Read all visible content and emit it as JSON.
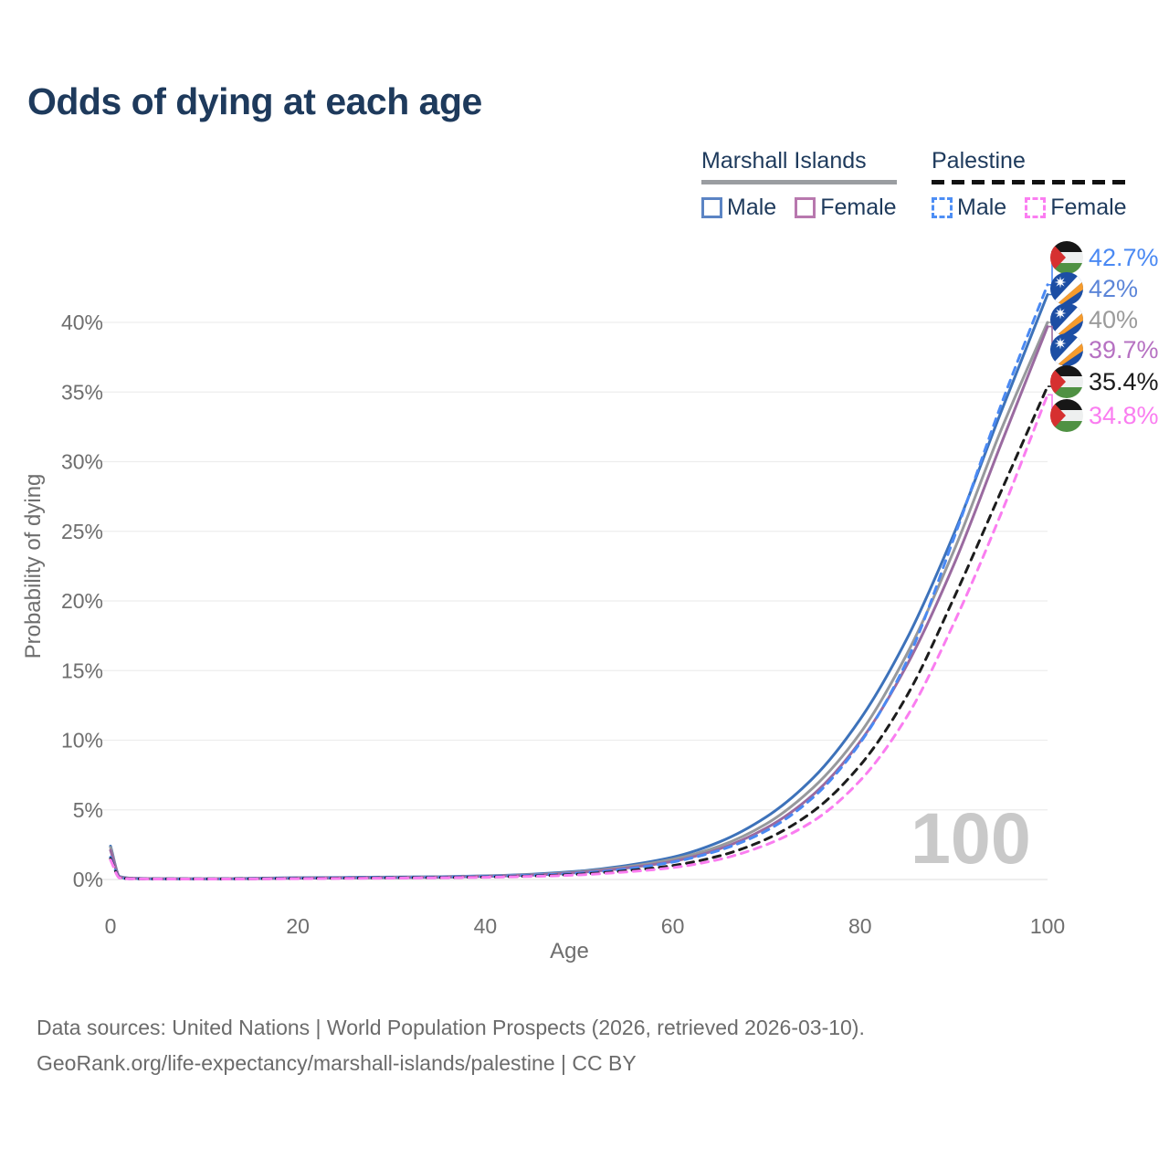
{
  "title": "Odds of dying at each age",
  "legend": {
    "groups": [
      {
        "label": "Marshall Islands",
        "rule_style": "solid",
        "rule_color": "#9a9da1",
        "items": [
          {
            "label": "Male",
            "color": "#5b84c4",
            "dashed": false
          },
          {
            "label": "Female",
            "color": "#b878ae",
            "dashed": false
          }
        ]
      },
      {
        "label": "Palestine",
        "rule_style": "dashed",
        "rule_color": "#111111",
        "items": [
          {
            "label": "Male",
            "color": "#4d8ef5",
            "dashed": true
          },
          {
            "label": "Female",
            "color": "#fb7df1",
            "dashed": true
          }
        ]
      }
    ]
  },
  "chart_data": {
    "type": "line",
    "title": "Odds of dying at each age",
    "xlabel": "Age",
    "ylabel": "Probability of dying",
    "x_ticks": [
      0,
      20,
      40,
      60,
      80,
      100
    ],
    "y_ticks": [
      0,
      5,
      10,
      15,
      20,
      25,
      30,
      35,
      40
    ],
    "y_tick_suffix": "%",
    "xlim": [
      0,
      100
    ],
    "ylim": [
      0,
      44
    ],
    "grid": "horizontal",
    "legend_position": "top-right",
    "watermark": "100",
    "ages": [
      0,
      1,
      2,
      5,
      10,
      15,
      20,
      25,
      30,
      35,
      40,
      45,
      50,
      55,
      60,
      65,
      70,
      75,
      80,
      85,
      90,
      95,
      100
    ],
    "series": [
      {
        "name": "Palestine Male",
        "country": "Palestine",
        "sex": "Male",
        "color": "#4a89f3",
        "label_color": "#4a89f3",
        "dashed": true,
        "flag": "palestine",
        "end_label": "42.7%",
        "end_value": 42.7,
        "values": [
          1.6,
          0.12,
          0.06,
          0.04,
          0.04,
          0.06,
          0.1,
          0.12,
          0.14,
          0.17,
          0.22,
          0.3,
          0.45,
          0.75,
          1.25,
          2.1,
          3.5,
          5.9,
          9.8,
          15.7,
          24.5,
          34.0,
          42.7
        ]
      },
      {
        "name": "Marshall Islands Male",
        "country": "Marshall Islands",
        "sex": "Male",
        "color": "#3d72ba",
        "label_color": "#5c85d8",
        "dashed": false,
        "flag": "marshall",
        "end_label": "42%",
        "end_value": 42.0,
        "values": [
          2.4,
          0.2,
          0.1,
          0.06,
          0.05,
          0.08,
          0.13,
          0.15,
          0.17,
          0.2,
          0.26,
          0.38,
          0.6,
          1.0,
          1.6,
          2.7,
          4.5,
          7.3,
          11.5,
          17.3,
          24.8,
          33.5,
          42.0
        ]
      },
      {
        "name": "Marshall Islands",
        "country": "Marshall Islands",
        "sex": "Both",
        "color": "#97999c",
        "label_color": "#9b9b9b",
        "dashed": false,
        "flag": "marshall",
        "end_label": "40%",
        "end_value": 40.0,
        "values": [
          2.3,
          0.18,
          0.09,
          0.05,
          0.05,
          0.07,
          0.11,
          0.13,
          0.15,
          0.18,
          0.24,
          0.34,
          0.55,
          0.9,
          1.45,
          2.4,
          4.0,
          6.6,
          10.5,
          16.2,
          23.6,
          32.2,
          40.0
        ]
      },
      {
        "name": "Marshall Islands Female",
        "country": "Marshall Islands",
        "sex": "Female",
        "color": "#9a6aa0",
        "label_color": "#b671c2",
        "dashed": false,
        "flag": "marshall",
        "end_label": "39.7%",
        "end_value": 39.7,
        "values": [
          2.1,
          0.16,
          0.08,
          0.05,
          0.04,
          0.06,
          0.09,
          0.11,
          0.13,
          0.16,
          0.22,
          0.31,
          0.5,
          0.82,
          1.3,
          2.2,
          3.7,
          6.1,
          9.9,
          15.4,
          22.6,
          31.2,
          39.7
        ]
      },
      {
        "name": "Palestine",
        "country": "Palestine",
        "sex": "Both",
        "color": "#1c1c1c",
        "label_color": "#1c1c1c",
        "dashed": true,
        "flag": "palestine",
        "end_label": "35.4%",
        "end_value": 35.4,
        "values": [
          1.5,
          0.11,
          0.06,
          0.04,
          0.04,
          0.05,
          0.08,
          0.1,
          0.12,
          0.14,
          0.18,
          0.25,
          0.38,
          0.62,
          1.0,
          1.7,
          2.9,
          4.9,
          8.2,
          13.2,
          20.2,
          27.8,
          35.4
        ]
      },
      {
        "name": "Palestine Female",
        "country": "Palestine",
        "sex": "Female",
        "color": "#fa7df0",
        "label_color": "#fa7df0",
        "dashed": true,
        "flag": "palestine",
        "end_label": "34.8%",
        "end_value": 34.8,
        "values": [
          1.4,
          0.1,
          0.05,
          0.03,
          0.03,
          0.04,
          0.06,
          0.08,
          0.1,
          0.12,
          0.16,
          0.22,
          0.33,
          0.54,
          0.85,
          1.45,
          2.5,
          4.2,
          7.1,
          11.7,
          18.4,
          26.2,
          34.8
        ]
      }
    ]
  },
  "footer": {
    "line1": "Data sources: United Nations | World Population Prospects (2026, retrieved 2026-03-10).",
    "line2": "GeoRank.org/life-expectancy/marshall-islands/palestine | CC BY"
  },
  "colors": {
    "title": "#1e3a5c",
    "axis_text": "#6e6e6e",
    "gridline": "#ededed",
    "watermark": "#c9c9c9",
    "flag_palestine": {
      "black": "#171717",
      "white": "#eef0f0",
      "green": "#4f9143",
      "red": "#d63030"
    },
    "flag_marshall": {
      "blue": "#1c4ea4",
      "orange": "#f59b2d",
      "white": "#ffffff"
    }
  }
}
